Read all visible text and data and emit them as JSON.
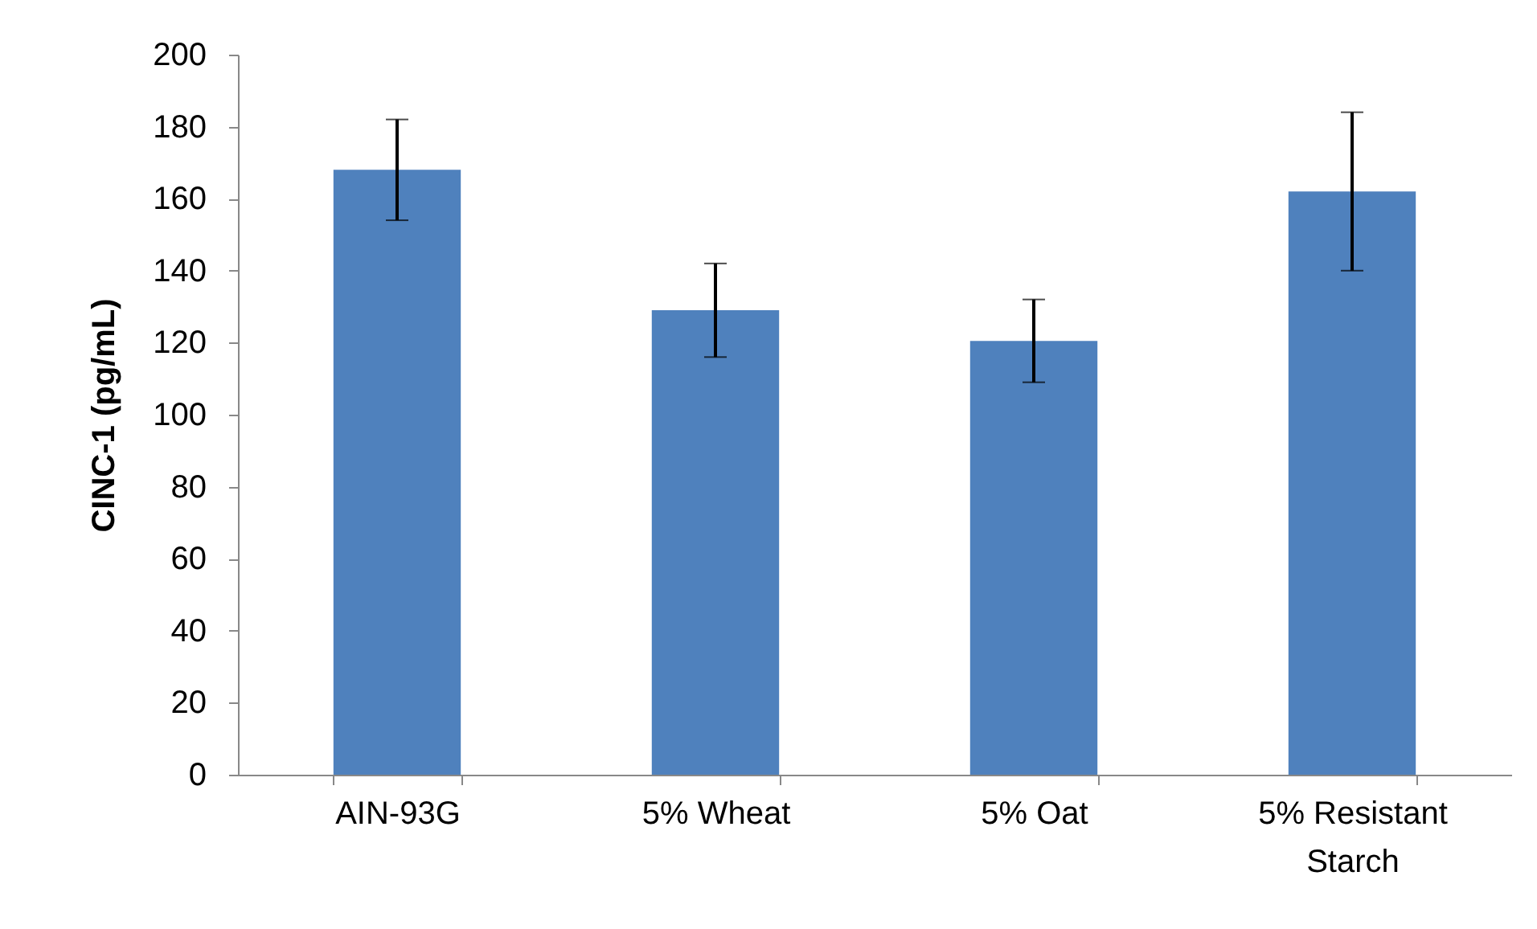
{
  "chart_data": {
    "type": "bar",
    "ylabel": "CINC-1 (pg/mL)",
    "categories": [
      "AIN-93G",
      "5% Wheat",
      "5% Oat",
      "5% Resistant Starch"
    ],
    "values": [
      168,
      129,
      120.5,
      162
    ],
    "errors": [
      14,
      13,
      11.5,
      22
    ],
    "color": "#4f81bd",
    "ylim": [
      0,
      200
    ],
    "yticks": [
      0,
      20,
      40,
      60,
      80,
      100,
      120,
      140,
      160,
      180,
      200
    ],
    "grid": false
  }
}
